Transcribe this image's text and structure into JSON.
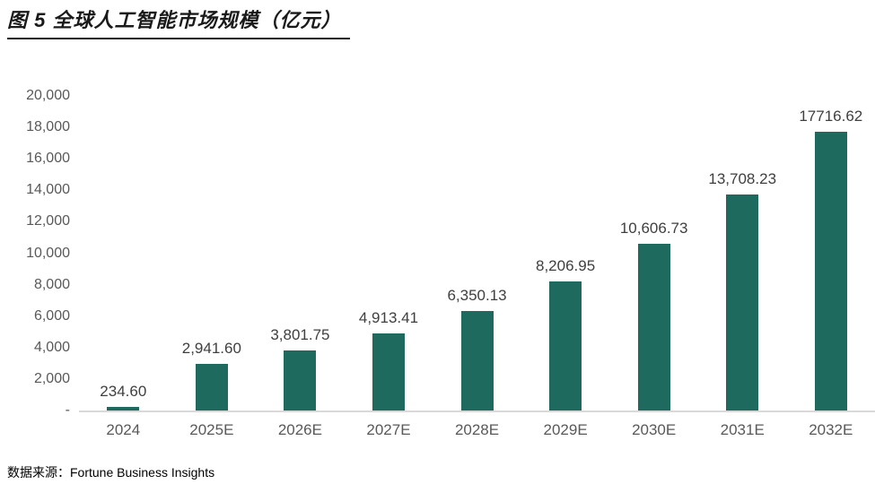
{
  "figure": {
    "title": "图 5 全球人工智能市场规模（亿元）",
    "source": "数据来源：Fortune Business Insights"
  },
  "colors": {
    "bar": "#1e6a5e",
    "axis_label": "#595959",
    "value_label": "#3f3f3f",
    "baseline": "#d9d9d9",
    "title": "#1a1a1a"
  },
  "chart_data": {
    "type": "bar",
    "title": "图 5 全球人工智能市场规模（亿元）",
    "xlabel": "",
    "ylabel": "",
    "unit": "亿元",
    "categories": [
      "2024",
      "2025E",
      "2026E",
      "2027E",
      "2028E",
      "2029E",
      "2030E",
      "2031E",
      "2032E"
    ],
    "values": [
      234.6,
      2941.6,
      3801.75,
      4913.41,
      6350.13,
      8206.95,
      10606.73,
      13708.23,
      17716.62
    ],
    "value_labels": [
      "234.60",
      "2,941.60",
      "3,801.75",
      "4,913.41",
      "6,350.13",
      "8,206.95",
      "10,606.73",
      "13,708.23",
      "17716.62"
    ],
    "ylim": [
      0,
      20000
    ],
    "y_ticks": [
      {
        "value": 20000,
        "label": "20,000"
      },
      {
        "value": 18000,
        "label": "18,000"
      },
      {
        "value": 16000,
        "label": "16,000"
      },
      {
        "value": 14000,
        "label": "14,000"
      },
      {
        "value": 12000,
        "label": "12,000"
      },
      {
        "value": 10000,
        "label": "10,000"
      },
      {
        "value": 8000,
        "label": "8,000"
      },
      {
        "value": 6000,
        "label": "6,000"
      },
      {
        "value": 4000,
        "label": "4,000"
      },
      {
        "value": 2000,
        "label": "2,000"
      },
      {
        "value": 0,
        "label": "-"
      }
    ],
    "grid": false,
    "legend": "none",
    "source": "数据来源：Fortune Business Insights"
  }
}
